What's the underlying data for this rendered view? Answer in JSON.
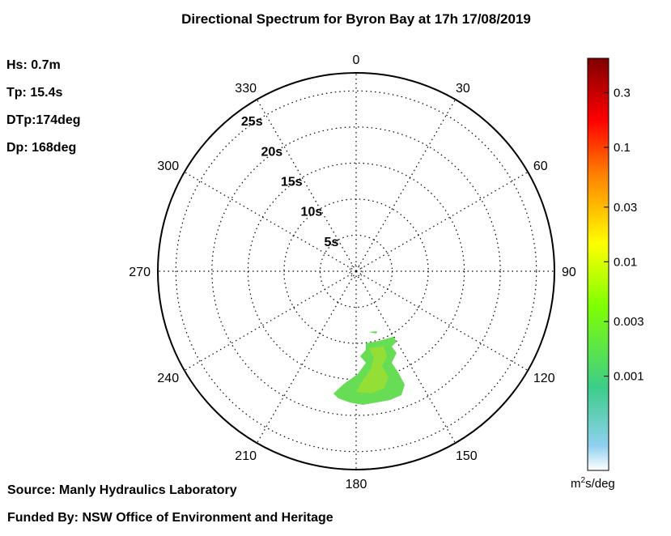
{
  "title": "Directional Spectrum for Byron Bay at 17h 17/08/2019",
  "stats": [
    {
      "label": "Hs:",
      "value": "0.7m"
    },
    {
      "label": "Tp:",
      "value": "15.4s"
    },
    {
      "label": "DTp:",
      "value": "174deg"
    },
    {
      "label": "Dp:",
      "value": "168deg"
    }
  ],
  "source": "Source: Manly Hydraulics Laboratory",
  "funded": "Funded By: NSW Office of Environment and Heritage",
  "colorbar": {
    "unit_base": "m",
    "unit_sup": "2",
    "unit_rest": "s/deg",
    "ticks": [
      "0.3",
      "0.1",
      "0.03",
      "0.01",
      "0.003",
      "0.001"
    ],
    "colors": [
      "#7f0000",
      "#ff0000",
      "#ff7f00",
      "#ffff00",
      "#7fff00",
      "#3ccd5a",
      "#6fc8c8",
      "#ffffff"
    ]
  },
  "chart_data": {
    "type": "heatmap",
    "title": "Directional Spectrum for Byron Bay at 17h 17/08/2019",
    "projection": "polar",
    "angle_labels": [
      "0",
      "30",
      "60",
      "90",
      "120",
      "150",
      "180",
      "210",
      "240",
      "270",
      "300",
      "330"
    ],
    "period_labels": [
      "5s",
      "10s",
      "15s",
      "20s",
      "25s"
    ],
    "grid": true,
    "colorbar_ticks": [
      "0.3",
      "0.1",
      "0.03",
      "0.01",
      "0.003",
      "0.001"
    ],
    "energy_regions": [
      {
        "direction_deg": [
          160,
          178
        ],
        "period_s": [
          10,
          17
        ],
        "level": "0.003"
      },
      {
        "direction_deg": [
          166,
          176
        ],
        "period_s": [
          12,
          16
        ],
        "level": "0.01"
      }
    ]
  }
}
